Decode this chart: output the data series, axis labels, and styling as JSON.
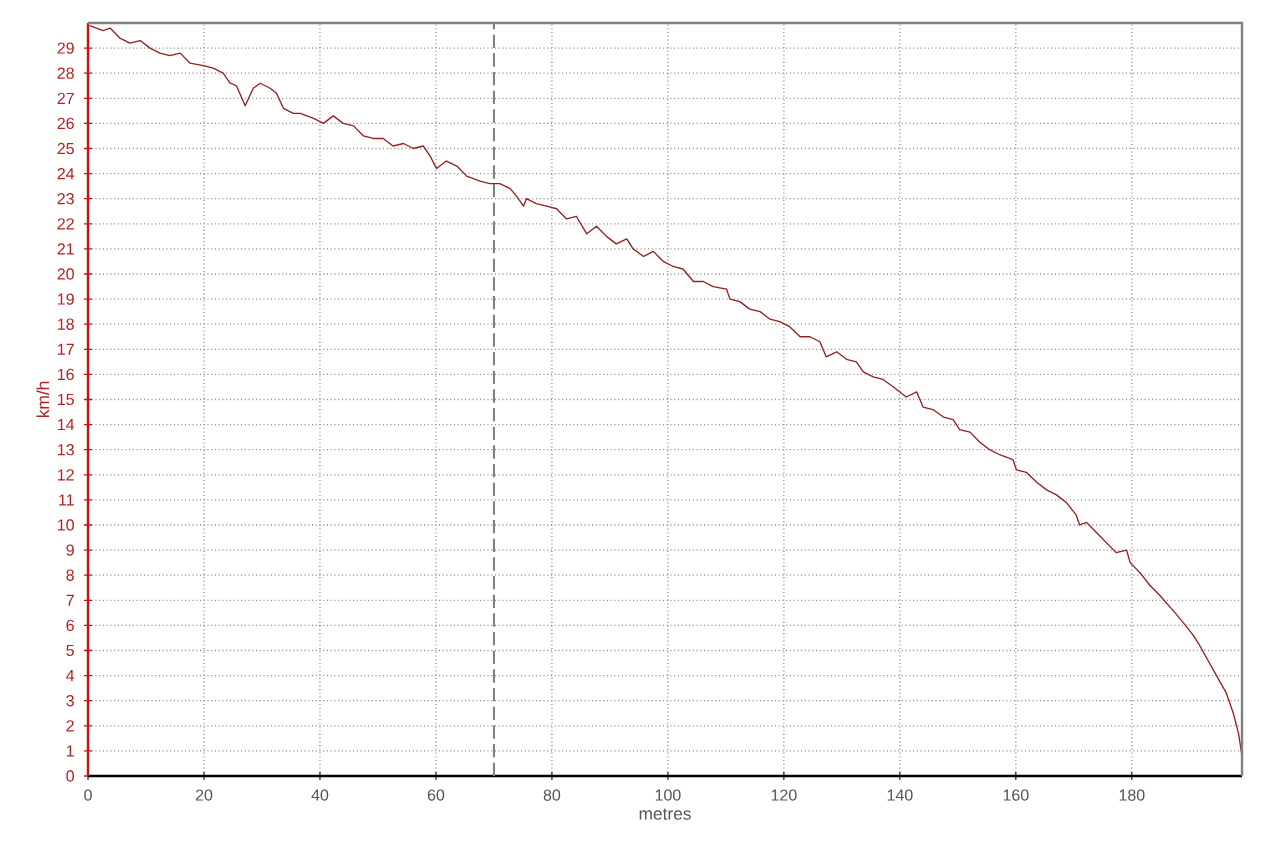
{
  "chart_data": {
    "type": "line",
    "xlabel": "metres",
    "ylabel": "km/h",
    "color": "#962020",
    "x": [
      0.3,
      2.6,
      3.8,
      5.5,
      7.2,
      9.0,
      10.7,
      12.4,
      14.1,
      15.9,
      17.6,
      19.9,
      21.6,
      23.3,
      24.5,
      25.6,
      27.1,
      28.5,
      29.7,
      31.4,
      32.5,
      33.7,
      35.4,
      36.6,
      38.9,
      40.6,
      42.3,
      44.0,
      45.8,
      47.5,
      49.2,
      50.9,
      52.6,
      54.4,
      56.1,
      57.8,
      59.0,
      60.1,
      61.8,
      63.6,
      65.3,
      67.6,
      69.3,
      71.0,
      72.8,
      73.9,
      75.1,
      75.6,
      77.3,
      79.1,
      80.8,
      82.5,
      84.2,
      86.0,
      87.7,
      89.4,
      91.1,
      92.9,
      94.0,
      95.8,
      97.5,
      99.2,
      100.9,
      102.6,
      104.4,
      106.1,
      107.8,
      110.1,
      110.7,
      112.4,
      114.1,
      115.9,
      117.6,
      119.3,
      121.0,
      122.8,
      124.5,
      126.2,
      127.3,
      129.1,
      130.8,
      132.5,
      133.7,
      135.4,
      137.1,
      138.9,
      141.1,
      142.9,
      144.0,
      145.7,
      147.5,
      149.2,
      150.3,
      152.1,
      153.8,
      155.5,
      157.2,
      159.5,
      160.1,
      161.8,
      163.6,
      165.3,
      167.0,
      168.7,
      170.4,
      171.0,
      172.2,
      173.9,
      175.6,
      177.3,
      179.1,
      179.7,
      181.4,
      183.1,
      184.8,
      187.1,
      188.9,
      190.6,
      191.7,
      192.9,
      194.6,
      196.3,
      197.5,
      198.4,
      199
    ],
    "values": [
      29.9,
      29.7,
      29.8,
      29.4,
      29.2,
      29.3,
      29.0,
      28.8,
      28.7,
      28.8,
      28.4,
      28.3,
      28.2,
      28.0,
      27.6,
      27.5,
      26.7,
      27.4,
      27.6,
      27.4,
      27.2,
      26.6,
      26.4,
      26.4,
      26.2,
      26.0,
      26.3,
      26.0,
      25.9,
      25.5,
      25.4,
      25.4,
      25.1,
      25.2,
      25.0,
      25.1,
      24.7,
      24.2,
      24.5,
      24.3,
      23.9,
      23.7,
      23.6,
      23.6,
      23.4,
      23.1,
      22.7,
      23.0,
      22.8,
      22.7,
      22.6,
      22.2,
      22.3,
      21.6,
      21.9,
      21.5,
      21.2,
      21.4,
      21.0,
      20.7,
      20.9,
      20.5,
      20.3,
      20.2,
      19.7,
      19.7,
      19.5,
      19.4,
      19.0,
      18.9,
      18.6,
      18.5,
      18.2,
      18.1,
      17.9,
      17.5,
      17.5,
      17.3,
      16.7,
      16.9,
      16.6,
      16.5,
      16.1,
      15.9,
      15.8,
      15.5,
      15.1,
      15.3,
      14.7,
      14.6,
      14.3,
      14.2,
      13.8,
      13.7,
      13.3,
      13.0,
      12.8,
      12.6,
      12.2,
      12.1,
      11.7,
      11.4,
      11.2,
      10.9,
      10.4,
      10.0,
      10.1,
      9.7,
      9.3,
      8.9,
      9.0,
      8.5,
      8.1,
      7.6,
      7.2,
      6.6,
      6.1,
      5.6,
      5.2,
      4.7,
      4.0,
      3.3,
      2.5,
      1.7,
      0.8
    ],
    "xlim": [
      0,
      199
    ],
    "ylim": [
      0,
      30
    ],
    "xticks": [
      0,
      20,
      40,
      60,
      80,
      100,
      120,
      140,
      160,
      180
    ],
    "yticks": [
      0,
      1,
      2,
      3,
      4,
      5,
      6,
      7,
      8,
      9,
      10,
      11,
      12,
      13,
      14,
      15,
      16,
      17,
      18,
      19,
      20,
      21,
      22,
      23,
      24,
      25,
      26,
      27,
      28,
      29
    ],
    "grid": true,
    "ref_lines": [
      {
        "axis": "x",
        "value": 70,
        "color": "#808080",
        "line_style": "dashed"
      }
    ]
  }
}
